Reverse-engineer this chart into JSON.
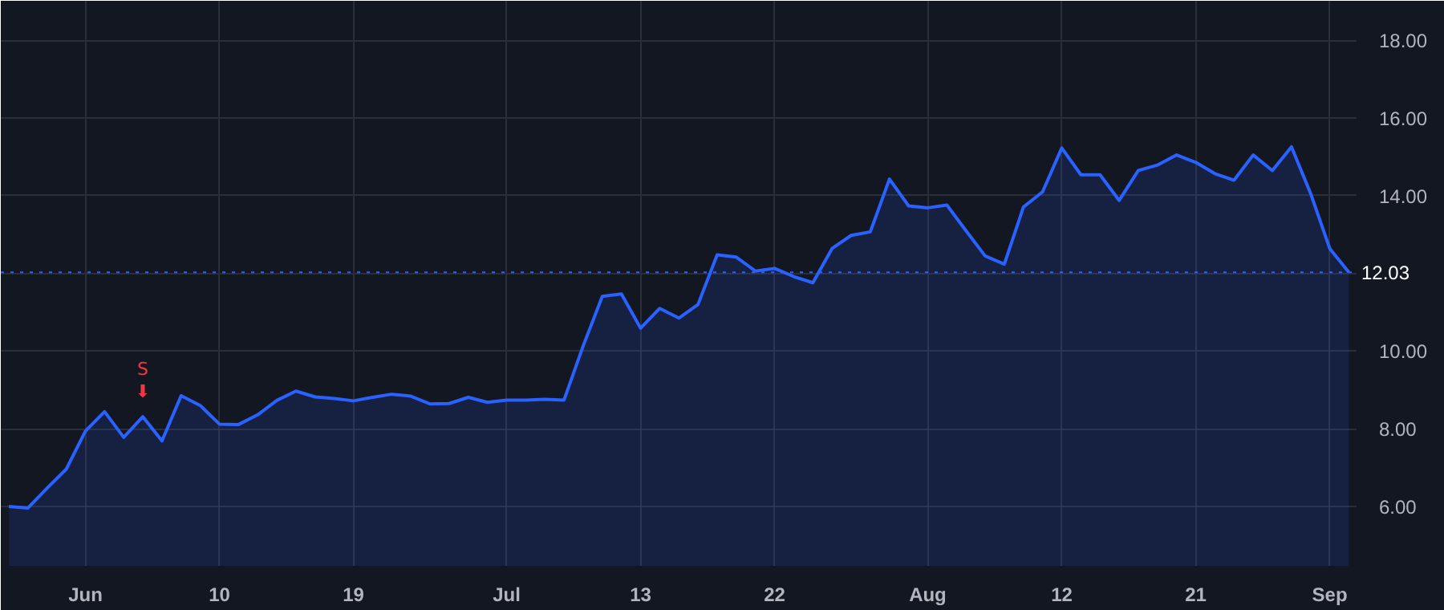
{
  "chart_data": {
    "type": "area",
    "categories": [
      null,
      null,
      null,
      null,
      "Jun",
      null,
      null,
      null,
      null,
      null,
      null,
      "10",
      null,
      null,
      null,
      null,
      null,
      null,
      "19",
      null,
      null,
      null,
      null,
      null,
      null,
      null,
      "Jul",
      null,
      null,
      null,
      null,
      null,
      null,
      "13",
      null,
      null,
      null,
      null,
      null,
      null,
      "22",
      null,
      null,
      null,
      null,
      null,
      null,
      null,
      "Aug",
      null,
      null,
      null,
      null,
      null,
      null,
      "12",
      null,
      null,
      null,
      null,
      null,
      null,
      "21",
      null,
      null,
      null,
      null,
      null,
      null,
      "Sep",
      null
    ],
    "series": [
      {
        "color": "#2962ff",
        "values": [
          6.0,
          5.96,
          6.47,
          6.96,
          7.94,
          8.44,
          7.78,
          8.31,
          7.69,
          8.85,
          8.6,
          8.12,
          8.11,
          8.36,
          8.73,
          8.97,
          8.82,
          8.78,
          8.72,
          8.81,
          8.89,
          8.84,
          8.64,
          8.65,
          8.81,
          8.68,
          8.74,
          8.74,
          8.76,
          8.74,
          10.13,
          11.41,
          11.47,
          10.59,
          11.1,
          10.85,
          11.2,
          12.48,
          12.42,
          12.06,
          12.13,
          11.92,
          11.76,
          12.64,
          12.98,
          13.07,
          14.43,
          13.74,
          13.69,
          13.76,
          13.1,
          12.45,
          12.24,
          13.71,
          14.1,
          15.23,
          14.54,
          14.54,
          13.88,
          14.65,
          14.79,
          15.05,
          14.86,
          14.57,
          14.4,
          15.05,
          14.65,
          15.26,
          14.06,
          12.64,
          12.03
        ]
      }
    ],
    "ylim": [
      4.47,
      19.02
    ],
    "yticks": [
      {
        "value": 6,
        "label": "6.00"
      },
      {
        "value": 8,
        "label": "8.00"
      },
      {
        "value": 10,
        "label": "10.00"
      },
      {
        "value": 12,
        "label": null
      },
      {
        "value": 14,
        "label": "14.00"
      },
      {
        "value": 16,
        "label": "16.00"
      },
      {
        "value": 18,
        "label": "18.00"
      }
    ],
    "ref_lines": [
      {
        "axis": "y",
        "value": 12.03,
        "label": "12.03",
        "color": "#2962ff",
        "line_style": "dotted"
      }
    ],
    "annotations": [
      {
        "text": "S",
        "y": 8.31
      },
      {
        "text": "⬇",
        "y": 8.31
      }
    ],
    "grid": true,
    "marker": "none",
    "line_style": "solid"
  }
}
